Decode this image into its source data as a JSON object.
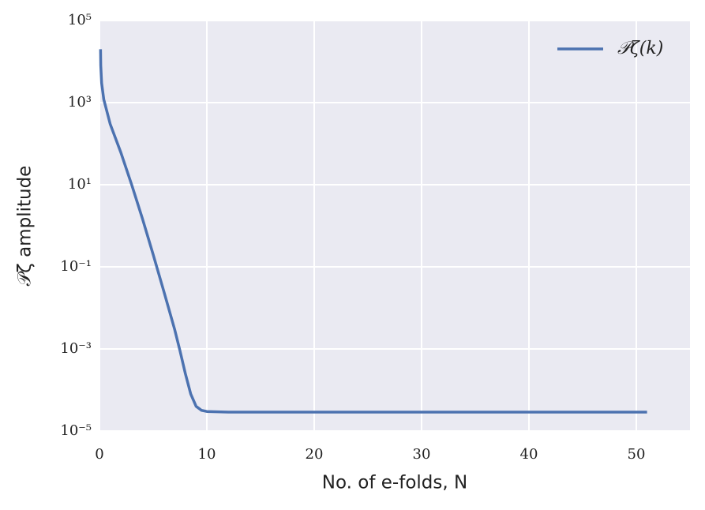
{
  "chart_data": {
    "type": "line",
    "xlabel": "No. of e-folds, N",
    "ylabel": "𝒫ζ amplitude",
    "x": [
      0.1,
      0.12,
      0.2,
      0.4,
      1,
      2,
      3,
      4,
      5,
      6,
      7,
      7.5,
      8,
      8.5,
      9,
      9.5,
      10,
      12,
      20,
      30,
      40,
      51
    ],
    "series": [
      {
        "name": "𝒫ζ(k)",
        "color": "#4c72b0",
        "values": [
          20000,
          8000,
          3000,
          1200,
          300,
          60,
          10,
          1.5,
          0.2,
          0.025,
          0.003,
          0.0009,
          0.00025,
          8e-05,
          4e-05,
          3.2e-05,
          3e-05,
          2.9e-05,
          2.9e-05,
          2.9e-05,
          2.9e-05,
          2.9e-05
        ]
      }
    ],
    "xlim": [
      0,
      55
    ],
    "xticks": [
      0,
      10,
      20,
      30,
      40,
      50
    ],
    "ylim": [
      1e-05,
      100000
    ],
    "yscale": "log",
    "yticks": [
      {
        "value": 1e-05,
        "label": "10⁻⁵"
      },
      {
        "value": 0.001,
        "label": "10⁻³"
      },
      {
        "value": 0.1,
        "label": "10⁻¹"
      },
      {
        "value": 10,
        "label": "10¹"
      },
      {
        "value": 1000,
        "label": "10³"
      },
      {
        "value": 100000,
        "label": "10⁵"
      }
    ],
    "grid": true,
    "legend": "upper right"
  }
}
